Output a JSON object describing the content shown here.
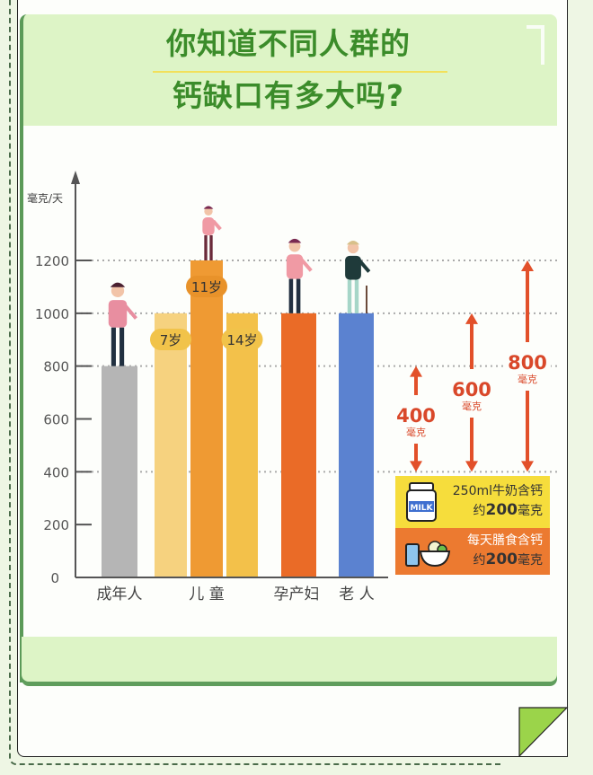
{
  "title": {
    "line1": "你知道不同人群的",
    "line2": "钙缺口有多大吗?"
  },
  "chart_data": {
    "type": "bar",
    "title": "你知道不同人群的钙缺口有多大吗?",
    "ylabel": "毫克/天",
    "ylim": [
      0,
      1400
    ],
    "yticks": [
      "0",
      "200",
      "400",
      "600",
      "800",
      "1000",
      "1200"
    ],
    "grid": "dotted at 400, 800, 1000, 1200",
    "categories": [
      "成年人",
      "儿 童",
      "孕产妇",
      "老 人"
    ],
    "bars": [
      {
        "group": "成年人",
        "label": "",
        "value": 800,
        "color": "#b5b5b5"
      },
      {
        "group": "儿 童",
        "label": "7岁",
        "value": 1000,
        "color": "#f6d27f"
      },
      {
        "group": "儿 童",
        "label": "11岁",
        "value": 1200,
        "color": "#ef9a33"
      },
      {
        "group": "儿 童",
        "label": "14岁",
        "value": 1000,
        "color": "#f3c14a"
      },
      {
        "group": "孕产妇",
        "label": "",
        "value": 1000,
        "color": "#ea6b27"
      },
      {
        "group": "老 人",
        "label": "",
        "value": 1000,
        "color": "#5b82d0"
      }
    ],
    "gaps": [
      {
        "value": "400",
        "unit": "毫克",
        "from": 400,
        "to": 800
      },
      {
        "value": "600",
        "unit": "毫克",
        "from": 400,
        "to": 1000
      },
      {
        "value": "800",
        "unit": "毫克",
        "from": 400,
        "to": 1200
      }
    ],
    "supply": [
      {
        "text": "250ml牛奶含钙",
        "amount_prefix": "约",
        "amount": "200",
        "amount_unit": "毫克",
        "value": 200,
        "icon": "milk-carton-icon",
        "color": "#f6dd3c"
      },
      {
        "text": "每天膳食含钙",
        "amount_prefix": "约",
        "amount": "200",
        "amount_unit": "毫克",
        "value": 200,
        "icon": "food-bowl-icon",
        "color": "#ec7a30"
      }
    ],
    "milk_icon_text": "MILK",
    "arrow_color": "#e2502a"
  }
}
